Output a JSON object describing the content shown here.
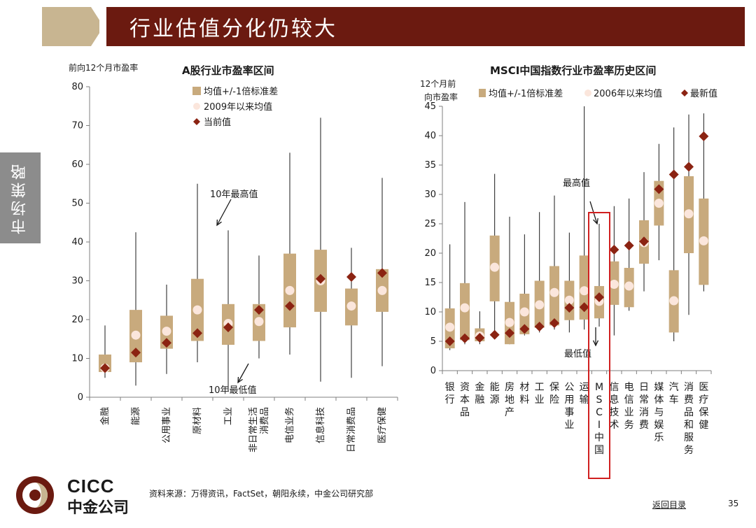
{
  "slide": {
    "title": "行业估值分化仍较大",
    "side_tab": "市场策略",
    "source": "资料来源：万得资讯，FactSet，朝阳永续，中金公司研究部",
    "back_link": "返回目录",
    "page_number": "35",
    "logo_en": "CICC",
    "logo_cn": "中金公司"
  },
  "colors": {
    "banner": "#6b1a10",
    "banner_accent": "#c8b591",
    "band": "#c8aa7d",
    "mean_dot": "#fbe6dc",
    "current": "#8b2312",
    "highlight": "#d02020"
  },
  "chart_data": [
    {
      "type": "box",
      "title": "A股行业市盈率区间",
      "ylabel": "前向12个月市盈率",
      "ylim": [
        0,
        80
      ],
      "yticks": [
        0,
        10,
        20,
        30,
        40,
        50,
        60,
        70,
        80
      ],
      "legend": [
        "均值+/-1倍标准差",
        "2009年以来均值",
        "当前值"
      ],
      "annotations": {
        "max": "10年最高值",
        "min": "10年最低值"
      },
      "categories": [
        "金融",
        "能源",
        "公用事业",
        "原材料",
        "工业",
        "非日常生活消费品",
        "电信业务",
        "信息科技",
        "日常消费品",
        "医疗保健"
      ],
      "category_lines": [
        [
          "金融"
        ],
        [
          "能源"
        ],
        [
          "公用事业"
        ],
        [
          "原材料"
        ],
        [
          "工业"
        ],
        [
          "非日常生活",
          "消费品"
        ],
        [
          "电信业务"
        ],
        [
          "信息科技"
        ],
        [
          "日常消费品"
        ],
        [
          "医疗保健"
        ]
      ],
      "max": [
        18.5,
        42.5,
        29,
        55,
        43,
        36.5,
        63,
        72,
        38.5,
        56.5
      ],
      "min": [
        5,
        3,
        6,
        9,
        1.5,
        10,
        11,
        4,
        5,
        8
      ],
      "band_lo": [
        6.5,
        9,
        12.5,
        14.5,
        13.5,
        14.5,
        18,
        22,
        18.5,
        22
      ],
      "band_hi": [
        11,
        22.5,
        21,
        30.5,
        24,
        24,
        37,
        38,
        28,
        33
      ],
      "mean": [
        7.5,
        16,
        17,
        22.5,
        19,
        19.5,
        27.5,
        30,
        23.5,
        27.5
      ],
      "current": [
        7.5,
        11.5,
        14,
        16.5,
        18,
        22.5,
        23.5,
        30.5,
        31,
        32
      ]
    },
    {
      "type": "box",
      "title": "MSCI中国指数行业市盈率历史区间",
      "ylabel": "12个月前向市盈率",
      "ylim": [
        0,
        45
      ],
      "yticks": [
        0,
        5,
        10,
        15,
        20,
        25,
        30,
        35,
        40,
        45
      ],
      "legend": [
        "均值+/-1倍标准差",
        "2006年以来均值",
        "最新值"
      ],
      "annotations": {
        "max": "最高值",
        "min": "最低值"
      },
      "categories": [
        "银行",
        "资本品",
        "金融",
        "能源",
        "房地产",
        "材料",
        "工业",
        "保险",
        "公用事业",
        "运输",
        "MSCI中国",
        "信息技术",
        "电信业务",
        "日常消费",
        "媒体与娱乐",
        "汽车",
        "消费品和服务",
        "医疗保健"
      ],
      "category_lines": [
        [
          "银",
          "行"
        ],
        [
          "资",
          "本",
          "品"
        ],
        [
          "金",
          "融"
        ],
        [
          "能",
          "源"
        ],
        [
          "房",
          "地",
          "产"
        ],
        [
          "材",
          "料"
        ],
        [
          "工",
          "业"
        ],
        [
          "保",
          "险"
        ],
        [
          "公",
          "用",
          "事",
          "业"
        ],
        [
          "运",
          "输"
        ],
        [
          "M",
          "S",
          "C",
          "I",
          "中",
          "国"
        ],
        [
          "信",
          "息",
          "技",
          "术"
        ],
        [
          "电",
          "信",
          "业",
          "务"
        ],
        [
          "日",
          "常",
          "消",
          "费"
        ],
        [
          "媒",
          "体",
          "与",
          "娱",
          "乐"
        ],
        [
          "汽",
          "车"
        ],
        [
          "消",
          "费",
          "品",
          "和",
          "服",
          "务"
        ],
        [
          "医",
          "疗",
          "保",
          "健"
        ]
      ],
      "max": [
        21.5,
        28.7,
        10.1,
        33.5,
        26.2,
        23.2,
        27,
        29.8,
        23.5,
        45,
        25,
        28,
        29.3,
        33.8,
        38.6,
        41.4,
        43.6,
        43.8
      ],
      "min": [
        3.5,
        4.5,
        4.5,
        5.5,
        4.5,
        6,
        6.5,
        7,
        6.5,
        7,
        7.5,
        6,
        10.2,
        13.5,
        18.8,
        5,
        9.5,
        13.5
      ],
      "band_lo": [
        3.8,
        5.2,
        5,
        11.8,
        4.5,
        6.2,
        7.3,
        7.7,
        8.6,
        8.7,
        8.9,
        11.2,
        10.8,
        18.2,
        24.7,
        6.5,
        20,
        14.6
      ],
      "band_hi": [
        10.6,
        14.9,
        7.2,
        23,
        11.7,
        13.1,
        15.3,
        17.8,
        15.3,
        19.6,
        14.4,
        18.6,
        17.5,
        25.6,
        32.3,
        17.1,
        33.1,
        29.3
      ],
      "mean": [
        7.4,
        10.7,
        5.9,
        17.6,
        8.2,
        10,
        11.2,
        13.3,
        12,
        13.6,
        11.8,
        14.7,
        14.4,
        21.8,
        28.5,
        11.9,
        26.7,
        22.1
      ],
      "current": [
        5,
        5.5,
        5.6,
        6.1,
        6.4,
        7.1,
        7.5,
        8.1,
        10.7,
        10.8,
        12.5,
        20.6,
        21.3,
        22,
        30.9,
        33.4,
        34.7,
        39.9
      ]
    }
  ]
}
